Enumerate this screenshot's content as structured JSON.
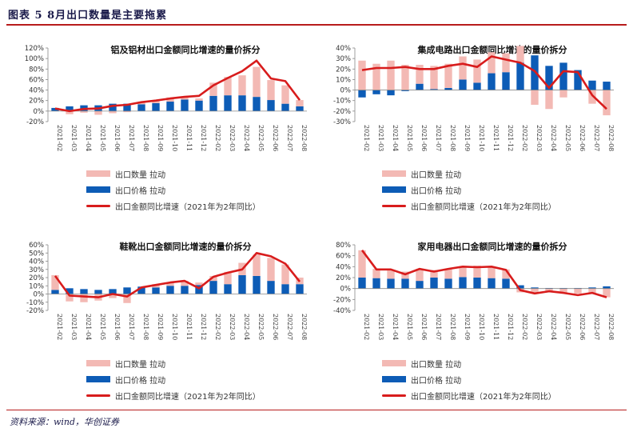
{
  "figure_title": "图表 5   8月出口数量是主要拖累",
  "source": "资料来源：wind，华创证券",
  "colors": {
    "qty": "#f3b9b4",
    "price": "#0d5cb6",
    "line": "#d81c1c",
    "axis": "#888888",
    "rule": "#b71c1c"
  },
  "legend": {
    "qty": "出口数量 拉动",
    "price": "出口价格 拉动",
    "total": "出口金额同比增速（2021年为2年同比）"
  },
  "chart_data": [
    {
      "type": "bar",
      "title": "铝及铝材出口金额同比增速的量价拆分",
      "categories": [
        "2021-02",
        "2021-03",
        "2021-04",
        "2021-05",
        "2021-06",
        "2021-07",
        "2021-08",
        "2021-09",
        "2021-10",
        "2021-11",
        "2021-12",
        "2022-02",
        "2022-03",
        "2022-04",
        "2022-05",
        "2022-06",
        "2022-07",
        "2022-08"
      ],
      "ylim": [
        -20,
        120
      ],
      "yticks": [
        -20,
        0,
        20,
        40,
        60,
        80,
        100,
        120
      ],
      "series": [
        {
          "name": "出口数量 拉动",
          "values": [
            0,
            -6,
            -3,
            -7,
            -4,
            -2,
            3,
            6,
            8,
            5,
            4,
            25,
            35,
            38,
            57,
            38,
            35,
            12
          ]
        },
        {
          "name": "出口价格 拉动",
          "values": [
            6,
            9,
            11,
            11,
            14,
            14,
            13,
            15,
            18,
            22,
            20,
            29,
            30,
            30,
            27,
            21,
            14,
            9
          ]
        },
        {
          "name": "出口金额同比增速（2021年为2年同比）",
          "values": [
            5,
            0,
            4,
            5,
            10,
            12,
            17,
            20,
            24,
            27,
            29,
            49,
            63,
            76,
            96,
            62,
            57,
            21
          ]
        }
      ]
    },
    {
      "type": "bar",
      "title": "集成电路出口金额同比增速的量价拆分",
      "categories": [
        "2021-02",
        "2021-03",
        "2021-04",
        "2021-05",
        "2021-06",
        "2021-07",
        "2021-08",
        "2021-09",
        "2021-10",
        "2021-11",
        "2021-12",
        "2022-02",
        "2022-03",
        "2022-04",
        "2022-05",
        "2022-06",
        "2022-07",
        "2022-08"
      ],
      "ylim": [
        -30,
        40
      ],
      "yticks": [
        -30,
        -20,
        -10,
        0,
        10,
        20,
        30,
        40
      ],
      "series": [
        {
          "name": "出口数量 拉动",
          "values": [
            28,
            25,
            28,
            24,
            18,
            22,
            23,
            22,
            22,
            20,
            18,
            16,
            -14,
            -18,
            -7,
            0,
            -13,
            -24
          ]
        },
        {
          "name": "出口价格 拉动",
          "values": [
            -7,
            -4,
            -5,
            -1,
            6,
            1,
            2,
            10,
            7,
            16,
            17,
            26,
            33,
            23,
            26,
            19,
            9,
            8
          ]
        },
        {
          "name": "出口金额同比增速（2021年为2年同比）",
          "values": [
            19,
            21,
            21,
            22,
            20,
            20,
            23,
            25,
            22,
            32,
            29,
            26,
            18,
            2,
            18,
            17,
            -5,
            -18
          ]
        }
      ]
    },
    {
      "type": "bar",
      "title": "鞋靴出口金额同比增速的量价拆分",
      "categories": [
        "2021-02",
        "2021-03",
        "2021-04",
        "2021-05",
        "2021-06",
        "2021-07",
        "2021-08",
        "2021-09",
        "2021-10",
        "2021-11",
        "2021-12",
        "2022-02",
        "2022-03",
        "2022-04",
        "2022-05",
        "2022-06",
        "2022-07",
        "2022-08"
      ],
      "ylim": [
        -20,
        60
      ],
      "yticks": [
        -20,
        -10,
        0,
        10,
        20,
        30,
        40,
        50,
        60
      ],
      "series": [
        {
          "name": "出口数量 拉动",
          "values": [
            18,
            -9,
            -10,
            -8,
            -5,
            -11,
            0,
            4,
            4,
            6,
            3,
            6,
            15,
            15,
            26,
            28,
            24,
            8
          ]
        },
        {
          "name": "出口价格 拉动",
          "values": [
            5,
            7,
            6,
            5,
            6,
            8,
            9,
            8,
            10,
            10,
            11,
            16,
            12,
            23,
            22,
            16,
            12,
            12
          ]
        },
        {
          "name": "出口金额同比增速（2021年为2年同比）",
          "values": [
            22,
            -2,
            -3,
            -4,
            0,
            -3,
            8,
            11,
            14,
            16,
            7,
            21,
            26,
            30,
            50,
            46,
            37,
            15
          ]
        }
      ]
    },
    {
      "type": "bar",
      "title": "家用电器出口金额同比增速的量价拆分",
      "categories": [
        "2021-02",
        "2021-03",
        "2021-04",
        "2021-05",
        "2021-06",
        "2021-07",
        "2021-08",
        "2021-09",
        "2021-10",
        "2021-11",
        "2021-12",
        "2022-02",
        "2022-03",
        "2022-04",
        "2022-05",
        "2022-06",
        "2022-07",
        "2022-08"
      ],
      "ylim": [
        -40,
        80
      ],
      "yticks": [
        -40,
        -20,
        0,
        20,
        40,
        60,
        80
      ],
      "series": [
        {
          "name": "出口数量 拉动",
          "values": [
            50,
            17,
            15,
            13,
            22,
            14,
            17,
            18,
            22,
            20,
            17,
            -7,
            -7,
            -7,
            -7,
            -9,
            -10,
            -16
          ]
        },
        {
          "name": "出口价格 拉动",
          "values": [
            20,
            19,
            18,
            18,
            14,
            20,
            18,
            21,
            20,
            19,
            18,
            6,
            2,
            1,
            1,
            1,
            2,
            4
          ]
        },
        {
          "name": "出口金额同比增速（2021年为2年同比）",
          "values": [
            70,
            35,
            35,
            26,
            36,
            31,
            36,
            40,
            39,
            40,
            34,
            -3,
            -9,
            -5,
            -8,
            -12,
            -8,
            -16
          ]
        }
      ]
    }
  ]
}
